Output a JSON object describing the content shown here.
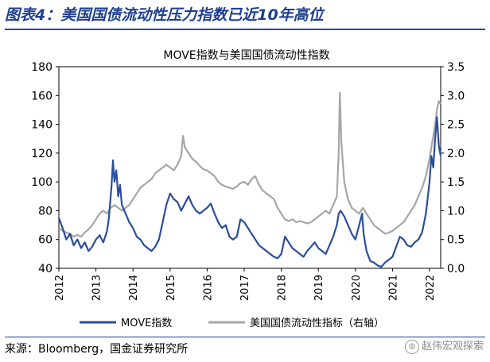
{
  "figure": {
    "title": "图表4：美国国债流动性压力指数已近10年高位",
    "source": "来源：Bloomberg，国金证券研究所",
    "watermark": "赵伟宏观探索"
  },
  "icons": {
    "watermark": "wechat-icon"
  },
  "colors": {
    "title": "#1f3f8f",
    "move": "#2a4d9c",
    "liquidity": "#a6a6a6"
  },
  "chart_data": {
    "type": "line",
    "title": "MOVE指数与美国国债流动性指数",
    "left_axis": {
      "ylim": [
        40,
        180
      ],
      "ticks": [
        40,
        60,
        80,
        100,
        120,
        140,
        160,
        180
      ]
    },
    "right_axis": {
      "ylim": [
        0,
        3.5
      ],
      "ticks": [
        "0.0",
        "0.5",
        "1.0",
        "1.5",
        "2.0",
        "2.5",
        "3.0",
        "3.5"
      ]
    },
    "x_axis": {
      "xlim": [
        2012,
        2022.3
      ],
      "ticks": [
        "2012",
        "2013",
        "2014",
        "2015",
        "2016",
        "2017",
        "2018",
        "2019",
        "2020",
        "2021",
        "2022"
      ]
    },
    "grid": false,
    "legend_position": "bottom",
    "series": [
      {
        "name": "MOVE指数",
        "axis": "left",
        "points": [
          [
            2012.0,
            75
          ],
          [
            2012.1,
            68
          ],
          [
            2012.2,
            60
          ],
          [
            2012.3,
            64
          ],
          [
            2012.4,
            56
          ],
          [
            2012.5,
            60
          ],
          [
            2012.6,
            54
          ],
          [
            2012.7,
            58
          ],
          [
            2012.8,
            52
          ],
          [
            2012.9,
            55
          ],
          [
            2013.0,
            60
          ],
          [
            2013.1,
            63
          ],
          [
            2013.2,
            58
          ],
          [
            2013.3,
            66
          ],
          [
            2013.35,
            75
          ],
          [
            2013.42,
            97
          ],
          [
            2013.46,
            115
          ],
          [
            2013.5,
            100
          ],
          [
            2013.55,
            108
          ],
          [
            2013.6,
            90
          ],
          [
            2013.65,
            98
          ],
          [
            2013.7,
            84
          ],
          [
            2013.8,
            78
          ],
          [
            2013.9,
            72
          ],
          [
            2014.0,
            68
          ],
          [
            2014.1,
            62
          ],
          [
            2014.2,
            60
          ],
          [
            2014.3,
            56
          ],
          [
            2014.4,
            54
          ],
          [
            2014.5,
            52
          ],
          [
            2014.6,
            55
          ],
          [
            2014.7,
            60
          ],
          [
            2014.8,
            72
          ],
          [
            2014.9,
            84
          ],
          [
            2015.0,
            92
          ],
          [
            2015.1,
            88
          ],
          [
            2015.2,
            86
          ],
          [
            2015.3,
            80
          ],
          [
            2015.4,
            85
          ],
          [
            2015.5,
            90
          ],
          [
            2015.6,
            84
          ],
          [
            2015.7,
            80
          ],
          [
            2015.8,
            78
          ],
          [
            2015.9,
            80
          ],
          [
            2016.0,
            82
          ],
          [
            2016.1,
            85
          ],
          [
            2016.2,
            78
          ],
          [
            2016.3,
            72
          ],
          [
            2016.4,
            68
          ],
          [
            2016.5,
            70
          ],
          [
            2016.6,
            62
          ],
          [
            2016.7,
            60
          ],
          [
            2016.8,
            62
          ],
          [
            2016.9,
            74
          ],
          [
            2017.0,
            72
          ],
          [
            2017.1,
            68
          ],
          [
            2017.2,
            64
          ],
          [
            2017.3,
            60
          ],
          [
            2017.4,
            56
          ],
          [
            2017.5,
            54
          ],
          [
            2017.6,
            52
          ],
          [
            2017.7,
            50
          ],
          [
            2017.8,
            48
          ],
          [
            2017.9,
            47
          ],
          [
            2018.0,
            50
          ],
          [
            2018.1,
            62
          ],
          [
            2018.2,
            58
          ],
          [
            2018.3,
            54
          ],
          [
            2018.4,
            52
          ],
          [
            2018.5,
            50
          ],
          [
            2018.6,
            48
          ],
          [
            2018.7,
            52
          ],
          [
            2018.8,
            55
          ],
          [
            2018.9,
            58
          ],
          [
            2019.0,
            54
          ],
          [
            2019.1,
            52
          ],
          [
            2019.2,
            50
          ],
          [
            2019.3,
            56
          ],
          [
            2019.4,
            62
          ],
          [
            2019.5,
            70
          ],
          [
            2019.55,
            78
          ],
          [
            2019.6,
            80
          ],
          [
            2019.7,
            76
          ],
          [
            2019.8,
            70
          ],
          [
            2019.9,
            64
          ],
          [
            2020.0,
            60
          ],
          [
            2020.1,
            70
          ],
          [
            2020.18,
            78
          ],
          [
            2020.22,
            64
          ],
          [
            2020.3,
            52
          ],
          [
            2020.4,
            45
          ],
          [
            2020.5,
            44
          ],
          [
            2020.6,
            42
          ],
          [
            2020.7,
            41
          ],
          [
            2020.8,
            44
          ],
          [
            2020.9,
            46
          ],
          [
            2021.0,
            48
          ],
          [
            2021.1,
            55
          ],
          [
            2021.2,
            62
          ],
          [
            2021.3,
            60
          ],
          [
            2021.4,
            56
          ],
          [
            2021.5,
            55
          ],
          [
            2021.6,
            58
          ],
          [
            2021.7,
            60
          ],
          [
            2021.8,
            65
          ],
          [
            2021.9,
            78
          ],
          [
            2022.0,
            100
          ],
          [
            2022.05,
            118
          ],
          [
            2022.1,
            110
          ],
          [
            2022.15,
            130
          ],
          [
            2022.2,
            145
          ],
          [
            2022.25,
            125
          ],
          [
            2022.3,
            118
          ]
        ]
      },
      {
        "name": "美国国债流动性指标（右轴）",
        "axis": "right",
        "points": [
          [
            2012.0,
            0.7
          ],
          [
            2012.1,
            0.65
          ],
          [
            2012.2,
            0.62
          ],
          [
            2012.3,
            0.6
          ],
          [
            2012.4,
            0.55
          ],
          [
            2012.5,
            0.58
          ],
          [
            2012.6,
            0.55
          ],
          [
            2012.7,
            0.62
          ],
          [
            2012.8,
            0.68
          ],
          [
            2012.9,
            0.75
          ],
          [
            2013.0,
            0.85
          ],
          [
            2013.1,
            0.95
          ],
          [
            2013.2,
            1.0
          ],
          [
            2013.3,
            0.95
          ],
          [
            2013.4,
            1.05
          ],
          [
            2013.5,
            1.1
          ],
          [
            2013.6,
            1.05
          ],
          [
            2013.7,
            1.0
          ],
          [
            2013.8,
            1.05
          ],
          [
            2013.9,
            1.1
          ],
          [
            2014.0,
            1.2
          ],
          [
            2014.1,
            1.3
          ],
          [
            2014.2,
            1.4
          ],
          [
            2014.3,
            1.45
          ],
          [
            2014.4,
            1.5
          ],
          [
            2014.5,
            1.55
          ],
          [
            2014.6,
            1.65
          ],
          [
            2014.7,
            1.7
          ],
          [
            2014.8,
            1.75
          ],
          [
            2014.9,
            1.8
          ],
          [
            2015.0,
            1.75
          ],
          [
            2015.1,
            1.7
          ],
          [
            2015.2,
            1.8
          ],
          [
            2015.3,
            1.95
          ],
          [
            2015.35,
            2.3
          ],
          [
            2015.4,
            2.1
          ],
          [
            2015.5,
            2.0
          ],
          [
            2015.6,
            1.9
          ],
          [
            2015.7,
            1.85
          ],
          [
            2015.8,
            1.78
          ],
          [
            2015.9,
            1.72
          ],
          [
            2016.0,
            1.7
          ],
          [
            2016.1,
            1.65
          ],
          [
            2016.2,
            1.6
          ],
          [
            2016.3,
            1.5
          ],
          [
            2016.4,
            1.45
          ],
          [
            2016.5,
            1.42
          ],
          [
            2016.6,
            1.4
          ],
          [
            2016.7,
            1.38
          ],
          [
            2016.8,
            1.42
          ],
          [
            2016.9,
            1.48
          ],
          [
            2017.0,
            1.5
          ],
          [
            2017.1,
            1.45
          ],
          [
            2017.2,
            1.55
          ],
          [
            2017.3,
            1.6
          ],
          [
            2017.4,
            1.45
          ],
          [
            2017.5,
            1.35
          ],
          [
            2017.6,
            1.3
          ],
          [
            2017.7,
            1.25
          ],
          [
            2017.8,
            1.2
          ],
          [
            2017.9,
            1.05
          ],
          [
            2018.0,
            0.95
          ],
          [
            2018.1,
            0.85
          ],
          [
            2018.2,
            0.82
          ],
          [
            2018.3,
            0.85
          ],
          [
            2018.4,
            0.8
          ],
          [
            2018.5,
            0.82
          ],
          [
            2018.6,
            0.8
          ],
          [
            2018.7,
            0.78
          ],
          [
            2018.8,
            0.8
          ],
          [
            2018.9,
            0.85
          ],
          [
            2019.0,
            0.9
          ],
          [
            2019.1,
            0.95
          ],
          [
            2019.2,
            1.0
          ],
          [
            2019.3,
            0.95
          ],
          [
            2019.4,
            1.1
          ],
          [
            2019.5,
            1.25
          ],
          [
            2019.55,
            2.0
          ],
          [
            2019.58,
            3.05
          ],
          [
            2019.62,
            2.2
          ],
          [
            2019.7,
            1.5
          ],
          [
            2019.8,
            1.2
          ],
          [
            2019.9,
            1.05
          ],
          [
            2020.0,
            1.0
          ],
          [
            2020.1,
            0.95
          ],
          [
            2020.2,
            1.05
          ],
          [
            2020.3,
            0.95
          ],
          [
            2020.4,
            0.85
          ],
          [
            2020.5,
            0.75
          ],
          [
            2020.6,
            0.7
          ],
          [
            2020.7,
            0.65
          ],
          [
            2020.8,
            0.6
          ],
          [
            2020.9,
            0.62
          ],
          [
            2021.0,
            0.65
          ],
          [
            2021.1,
            0.7
          ],
          [
            2021.2,
            0.75
          ],
          [
            2021.3,
            0.8
          ],
          [
            2021.4,
            0.9
          ],
          [
            2021.5,
            1.0
          ],
          [
            2021.6,
            1.1
          ],
          [
            2021.7,
            1.25
          ],
          [
            2021.8,
            1.4
          ],
          [
            2021.9,
            1.6
          ],
          [
            2022.0,
            1.9
          ],
          [
            2022.05,
            2.1
          ],
          [
            2022.1,
            2.3
          ],
          [
            2022.15,
            2.5
          ],
          [
            2022.2,
            2.75
          ],
          [
            2022.25,
            2.9
          ],
          [
            2022.3,
            2.85
          ]
        ]
      }
    ]
  }
}
